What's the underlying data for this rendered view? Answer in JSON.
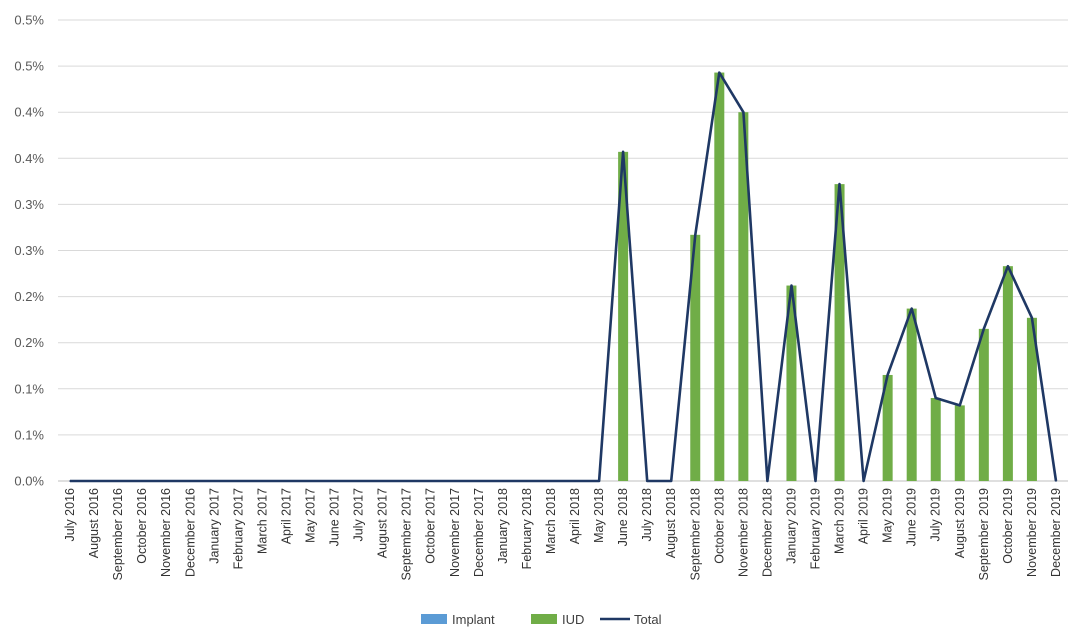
{
  "chart_data": {
    "type": "bar",
    "categories": [
      "July 2016",
      "August 2016",
      "September 2016",
      "October 2016",
      "November 2016",
      "December 2016",
      "January 2017",
      "February 2017",
      "March 2017",
      "April 2017",
      "May 2017",
      "June 2017",
      "July 2017",
      "August 2017",
      "September 2017",
      "October 2017",
      "November 2017",
      "December 2017",
      "January 2018",
      "February 2018",
      "March 2018",
      "April 2018",
      "May 2018",
      "June 2018",
      "July 2018",
      "August 2018",
      "September 2018",
      "October 2018",
      "November 2018",
      "December 2018",
      "January 2019",
      "February 2019",
      "March 2019",
      "April 2019",
      "May 2019",
      "June 2019",
      "July 2019",
      "August 2019",
      "September 2019",
      "October 2019",
      "November 2019",
      "December 2019"
    ],
    "y_ticks": [
      "0.0%",
      "0.1%",
      "0.1%",
      "0.2%",
      "0.2%",
      "0.3%",
      "0.3%",
      "0.4%",
      "0.4%",
      "0.5%",
      "0.5%"
    ],
    "ylim": [
      0,
      0.5
    ],
    "grid": true,
    "legend_position": "bottom",
    "series": [
      {
        "name": "Implant",
        "type": "bar",
        "color": "#5b9bd5",
        "values": [
          0,
          0,
          0,
          0,
          0,
          0,
          0,
          0,
          0,
          0,
          0,
          0,
          0,
          0,
          0,
          0,
          0,
          0,
          0,
          0,
          0,
          0,
          0,
          0,
          0,
          0,
          0,
          0,
          0,
          0,
          0,
          0,
          0,
          0,
          0,
          0,
          0,
          0,
          0,
          0,
          0,
          0
        ]
      },
      {
        "name": "IUD",
        "type": "bar",
        "color": "#70ad47",
        "values": [
          0,
          0,
          0,
          0,
          0,
          0,
          0,
          0,
          0,
          0,
          0,
          0,
          0,
          0,
          0,
          0,
          0,
          0,
          0,
          0,
          0,
          0,
          0,
          0.357,
          0,
          0,
          0.267,
          0.443,
          0.4,
          0,
          0.212,
          0,
          0.322,
          0,
          0.115,
          0.187,
          0.09,
          0.082,
          0.165,
          0.233,
          0.177,
          0
        ]
      },
      {
        "name": "Total",
        "type": "line",
        "color": "#1f3864",
        "values": [
          0,
          0,
          0,
          0,
          0,
          0,
          0,
          0,
          0,
          0,
          0,
          0,
          0,
          0,
          0,
          0,
          0,
          0,
          0,
          0,
          0,
          0,
          0,
          0.357,
          0,
          0,
          0.267,
          0.443,
          0.4,
          0,
          0.212,
          0,
          0.322,
          0,
          0.115,
          0.187,
          0.09,
          0.082,
          0.165,
          0.233,
          0.177,
          0
        ]
      }
    ]
  }
}
